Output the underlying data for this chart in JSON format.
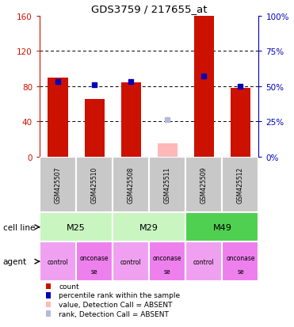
{
  "title": "GDS3759 / 217655_at",
  "samples": [
    "GSM425507",
    "GSM425510",
    "GSM425508",
    "GSM425511",
    "GSM425509",
    "GSM425512"
  ],
  "count_values": [
    90,
    65,
    84,
    15,
    160,
    78
  ],
  "count_absent": [
    false,
    false,
    false,
    true,
    false,
    false
  ],
  "rank_values": [
    53,
    51,
    53,
    26,
    57,
    50
  ],
  "rank_absent": [
    false,
    false,
    false,
    true,
    false,
    false
  ],
  "cell_line_groups": [
    {
      "label": "M25",
      "start": 0,
      "end": 2,
      "color": "#c8f5c0"
    },
    {
      "label": "M29",
      "start": 2,
      "end": 4,
      "color": "#c8f5c0"
    },
    {
      "label": "M49",
      "start": 4,
      "end": 6,
      "color": "#50d050"
    }
  ],
  "agents": [
    "control",
    "onconase\nse",
    "control",
    "onconase\nse",
    "control",
    "onconase\nse"
  ],
  "agent_display": [
    "control",
    "onconase\nse",
    "control",
    "onconase\nse",
    "control",
    "onconase\nse"
  ],
  "agent_color_control": "#f0a0f0",
  "agent_color_onconase": "#ee80ee",
  "ylim_left": [
    0,
    160
  ],
  "ylim_right": [
    0,
    100
  ],
  "yticks_left": [
    0,
    40,
    80,
    120,
    160
  ],
  "yticks_right": [
    0,
    25,
    50,
    75,
    100
  ],
  "bar_color_normal": "#cc1100",
  "bar_color_absent": "#ffb8b8",
  "rank_color_normal": "#0000bb",
  "rank_color_absent": "#b8b8dd",
  "legend_items": [
    {
      "color": "#cc1100",
      "label": "count"
    },
    {
      "color": "#0000bb",
      "label": "percentile rank within the sample"
    },
    {
      "color": "#ffb8b8",
      "label": "value, Detection Call = ABSENT"
    },
    {
      "color": "#b8b8dd",
      "label": "rank, Detection Call = ABSENT"
    }
  ],
  "left_tick_color": "#cc1100",
  "right_tick_color": "#0000bb",
  "gsm_bg": "#c8c8c8"
}
